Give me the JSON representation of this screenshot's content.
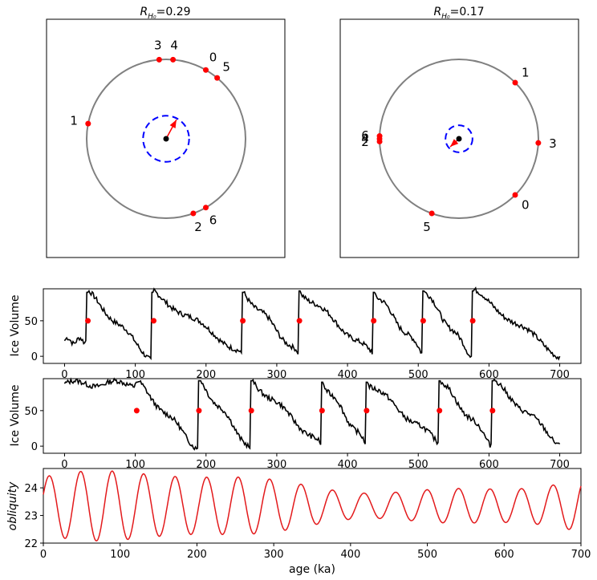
{
  "chart_data": [
    {
      "type": "scatter",
      "panel": "circle-left",
      "title_prefix": "R",
      "title_sub": "H₀",
      "title_value": "=0.29",
      "circle_radius": 1.0,
      "center": [
        0,
        0
      ],
      "dashed_circle_radius": 0.29,
      "arrow_end": [
        0.13,
        0.24
      ],
      "points": [
        {
          "label": "0",
          "angle": 60
        },
        {
          "label": "1",
          "angle": 169
        },
        {
          "label": "2",
          "angle": 290
        },
        {
          "label": "3",
          "angle": 95
        },
        {
          "label": "4",
          "angle": 85
        },
        {
          "label": "5",
          "angle": 50
        },
        {
          "label": "6",
          "angle": 300
        }
      ]
    },
    {
      "type": "scatter",
      "panel": "circle-right",
      "title_prefix": "R",
      "title_sub": "H₀",
      "title_value": "=0.17",
      "circle_radius": 1.0,
      "center": [
        0,
        0
      ],
      "dashed_circle_radius": 0.17,
      "arrow_end": [
        -0.11,
        -0.1
      ],
      "points": [
        {
          "label": "0",
          "angle": 315
        },
        {
          "label": "1",
          "angle": 45
        },
        {
          "label": "2",
          "angle": 182
        },
        {
          "label": "3",
          "angle": 357
        },
        {
          "label": "4",
          "angle": 180
        },
        {
          "label": "5",
          "angle": 250
        },
        {
          "label": "6",
          "angle": 178
        }
      ]
    },
    {
      "type": "line",
      "panel": "ice1",
      "ylabel": "Ice Volume",
      "xlim": [
        -30,
        730
      ],
      "ylim": [
        95,
        -10
      ],
      "yticks": [
        0,
        50
      ],
      "xticks": [
        0,
        100,
        200,
        300,
        400,
        500,
        600,
        700
      ],
      "cycles": [
        [
          0,
          30
        ],
        [
          33,
          122
        ],
        [
          125,
          250
        ],
        [
          253,
          330
        ],
        [
          333,
          435
        ],
        [
          438,
          505
        ],
        [
          508,
          575
        ],
        [
          578,
          700
        ]
      ],
      "peaks": [
        22,
        -3,
        5,
        3,
        3,
        5,
        0,
        -3
      ],
      "troughs": [
        90,
        90,
        90,
        92,
        90,
        92,
        92,
        0
      ],
      "markers": [
        {
          "x": 33,
          "y": 50
        },
        {
          "x": 126,
          "y": 50
        },
        {
          "x": 252,
          "y": 50
        },
        {
          "x": 332,
          "y": 50
        },
        {
          "x": 437,
          "y": 50
        },
        {
          "x": 507,
          "y": 50
        },
        {
          "x": 577,
          "y": 50
        }
      ]
    },
    {
      "type": "line",
      "panel": "ice2",
      "ylabel": "Ice Volume",
      "xlim": [
        -30,
        730
      ],
      "ylim": [
        95,
        -10
      ],
      "yticks": [
        0,
        50
      ],
      "xticks": [
        0,
        100,
        200,
        300,
        400,
        500,
        600,
        700
      ],
      "cycles": [
        [
          0,
          100
        ],
        [
          103,
          188
        ],
        [
          191,
          262
        ],
        [
          265,
          362
        ],
        [
          365,
          425
        ],
        [
          428,
          528
        ],
        [
          531,
          603
        ],
        [
          606,
          700
        ]
      ],
      "peaks": [
        88,
        -3,
        -3,
        2,
        3,
        5,
        3,
        0
      ],
      "troughs": [
        90,
        92,
        92,
        90,
        90,
        92,
        92,
        3
      ],
      "markers": [
        {
          "x": 102,
          "y": 50
        },
        {
          "x": 190,
          "y": 50
        },
        {
          "x": 264,
          "y": 50
        },
        {
          "x": 364,
          "y": 50
        },
        {
          "x": 427,
          "y": 50
        },
        {
          "x": 530,
          "y": 50
        },
        {
          "x": 605,
          "y": 50
        }
      ]
    },
    {
      "type": "line",
      "panel": "obliquity",
      "ylabel": "obliquity",
      "xlabel": "age (ka)",
      "xlim": [
        0,
        700
      ],
      "ylim": [
        22,
        24.7
      ],
      "yticks": [
        22,
        23,
        24
      ],
      "xticks": [
        0,
        100,
        200,
        300,
        400,
        500,
        600,
        700
      ],
      "period_ka": 41,
      "mean": 23.35,
      "color": "#e31a1c"
    }
  ],
  "colors": {
    "circle": "#808080",
    "dashed": "#0000ff",
    "points": "#ff0000",
    "arrow": "#ff0000",
    "ice": "#000000",
    "obliquity": "#e31a1c"
  }
}
